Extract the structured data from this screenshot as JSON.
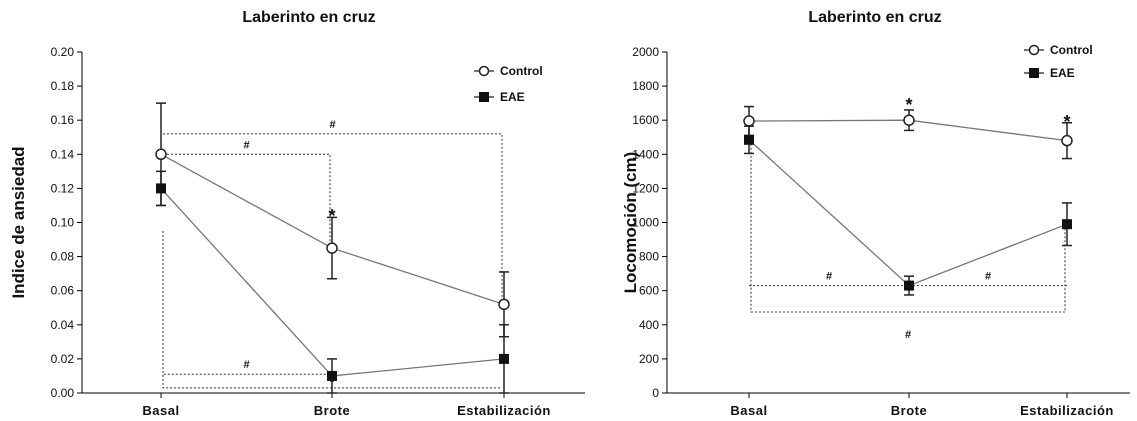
{
  "chart_data": [
    {
      "type": "line",
      "title": "Laberinto en cruz",
      "ylabel": "Indice de ansiedad",
      "xlabel": "",
      "categories": [
        "Basal",
        "Brote",
        "Estabilización"
      ],
      "ylim": [
        0,
        0.2
      ],
      "yticks": [
        "0.00",
        "0.02",
        "0.04",
        "0.06",
        "0.08",
        "0.10",
        "0.12",
        "0.14",
        "0.16",
        "0.18",
        "0.20"
      ],
      "legend_position": "top-right",
      "series": [
        {
          "name": "Control",
          "marker": "open-circle",
          "values": [
            0.14,
            0.085,
            0.052
          ],
          "errors": [
            0.03,
            0.018,
            0.019
          ]
        },
        {
          "name": "EAE",
          "marker": "filled-square",
          "values": [
            0.12,
            0.01,
            0.02
          ],
          "errors": [
            0.01,
            0.01,
            0.02
          ]
        }
      ],
      "annotations": [
        {
          "label": "*",
          "category": 1,
          "y": 0.105
        },
        {
          "label": "#",
          "bracket": [
            0,
            1
          ],
          "y_level": 0.14
        },
        {
          "label": "#",
          "bracket": [
            0,
            2
          ],
          "y_level": 0.152
        },
        {
          "label": "#",
          "bracket": [
            0,
            1
          ],
          "y_level": 0.011
        },
        {
          "label": "#",
          "bracket": [
            0,
            2
          ],
          "y_level": 0.003
        }
      ]
    },
    {
      "type": "line",
      "title": "Laberinto en cruz",
      "ylabel": "Locomoción (cm)",
      "xlabel": "",
      "categories": [
        "Basal",
        "Brote",
        "Estabilización"
      ],
      "ylim": [
        0,
        2000
      ],
      "yticks": [
        "0",
        "200",
        "400",
        "600",
        "800",
        "1000",
        "1200",
        "1400",
        "1600",
        "1800",
        "2000"
      ],
      "legend_position": "top-right",
      "series": [
        {
          "name": "Control",
          "marker": "open-circle",
          "values": [
            1595,
            1600,
            1480
          ],
          "errors": [
            85,
            60,
            105
          ]
        },
        {
          "name": "EAE",
          "marker": "filled-square",
          "values": [
            1485,
            630,
            990
          ],
          "errors": [
            80,
            55,
            125
          ]
        }
      ],
      "annotations": [
        {
          "label": "*",
          "category": 1,
          "y": 1700
        },
        {
          "label": "*",
          "category": 2,
          "y": 1600
        },
        {
          "label": "#",
          "bracket": [
            0,
            1
          ],
          "y_level": 630
        },
        {
          "label": "#",
          "bracket": [
            1,
            2
          ],
          "y_level": 630
        },
        {
          "label": "#",
          "bracket": [
            0,
            2
          ],
          "y_level": 475
        }
      ]
    }
  ]
}
